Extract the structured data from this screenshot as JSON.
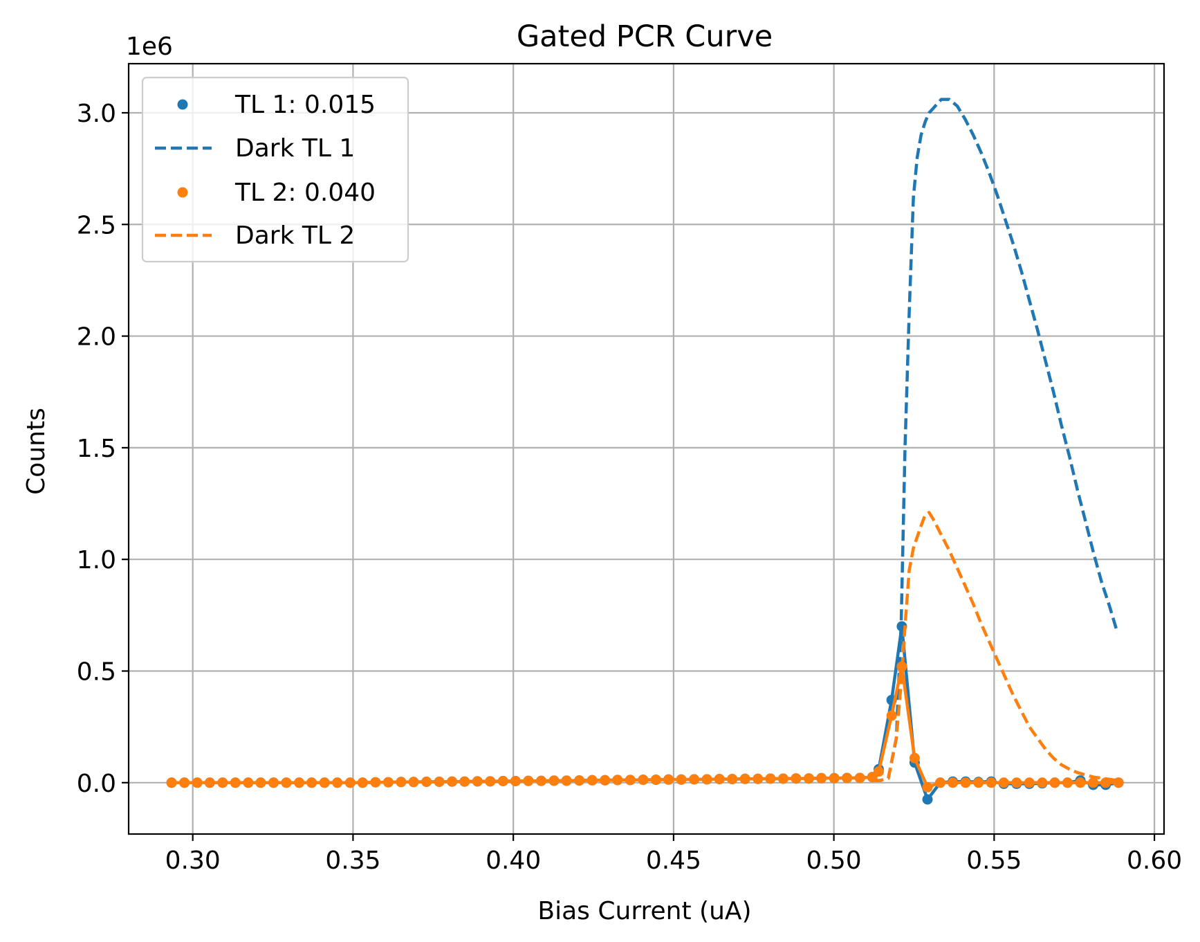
{
  "chart_data": {
    "type": "line",
    "title": "Gated PCR Curve",
    "xlabel": "Bias Current (uA)",
    "ylabel": "Counts",
    "y_offset_label": "1e6",
    "y_multiplier": 1000000,
    "xlim": [
      0.28,
      0.603
    ],
    "ylim": [
      -0.23,
      3.22
    ],
    "grid": true,
    "legend_position": "top-left",
    "x_ticks": [
      0.3,
      0.35,
      0.4,
      0.45,
      0.5,
      0.55,
      0.6
    ],
    "x_tick_labels": [
      "0.30",
      "0.35",
      "0.40",
      "0.45",
      "0.50",
      "0.55",
      "0.60"
    ],
    "y_ticks": [
      0.0,
      0.5,
      1.0,
      1.5,
      2.0,
      2.5,
      3.0
    ],
    "y_tick_labels": [
      "0.0",
      "0.5",
      "1.0",
      "1.5",
      "2.0",
      "2.5",
      "3.0"
    ],
    "colors": {
      "tl1": "#1f77b4",
      "tl2": "#ff7f0e"
    },
    "series": [
      {
        "name": "TL 1: 0.015",
        "style": "points-with-line",
        "color": "#1f77b4",
        "x": [
          0.2934,
          0.2974,
          0.3014,
          0.3053,
          0.3093,
          0.3133,
          0.3173,
          0.3212,
          0.3252,
          0.3292,
          0.3332,
          0.3371,
          0.3411,
          0.3451,
          0.3491,
          0.353,
          0.357,
          0.361,
          0.365,
          0.3689,
          0.3729,
          0.3769,
          0.3809,
          0.3848,
          0.3888,
          0.3928,
          0.3968,
          0.4007,
          0.4047,
          0.4087,
          0.4127,
          0.4166,
          0.4206,
          0.4246,
          0.4286,
          0.4325,
          0.4365,
          0.4405,
          0.4445,
          0.4484,
          0.4524,
          0.4564,
          0.4604,
          0.4643,
          0.4683,
          0.4723,
          0.4763,
          0.4802,
          0.4842,
          0.4882,
          0.4922,
          0.4961,
          0.5001,
          0.5041,
          0.5081,
          0.512,
          0.514,
          0.518,
          0.5212,
          0.5252,
          0.5292,
          0.5332,
          0.5371,
          0.5411,
          0.5451,
          0.5491,
          0.553,
          0.557,
          0.561,
          0.565,
          0.5689,
          0.5729,
          0.5769,
          0.5809,
          0.5848,
          0.5888
        ],
        "y": [
          0,
          0,
          0,
          0,
          0,
          0,
          0,
          0,
          0,
          0,
          0,
          0,
          0,
          0,
          0,
          0,
          0.002,
          0.002,
          0.003,
          0.003,
          0.004,
          0.004,
          0.005,
          0.005,
          0.006,
          0.006,
          0.007,
          0.007,
          0.008,
          0.008,
          0.009,
          0.009,
          0.01,
          0.011,
          0.011,
          0.012,
          0.012,
          0.013,
          0.013,
          0.014,
          0.014,
          0.015,
          0.015,
          0.016,
          0.016,
          0.017,
          0.017,
          0.018,
          0.018,
          0.019,
          0.019,
          0.02,
          0.02,
          0.021,
          0.021,
          0.025,
          0.06,
          0.37,
          0.7,
          0.09,
          -0.075,
          0.0,
          0.005,
          0.005,
          0.003,
          0.005,
          -0.005,
          -0.005,
          -0.005,
          -0.003,
          0.0,
          0.0,
          0.01,
          -0.01,
          -0.01,
          0.0
        ]
      },
      {
        "name": "Dark TL 1",
        "style": "dashed",
        "color": "#1f77b4",
        "x": [
          0.512,
          0.5145,
          0.517,
          0.5195,
          0.521,
          0.5222,
          0.5235,
          0.5248,
          0.526,
          0.5272,
          0.5285,
          0.5297,
          0.531,
          0.5335,
          0.536,
          0.5385,
          0.541,
          0.5435,
          0.546,
          0.5485,
          0.551,
          0.5535,
          0.556,
          0.5585,
          0.561,
          0.5635,
          0.566,
          0.5685,
          0.571,
          0.5735,
          0.576,
          0.5785,
          0.581,
          0.5835,
          0.586,
          0.5885
        ],
        "y": [
          0.01,
          0.01,
          0.02,
          0.2,
          0.72,
          1.5,
          2.1,
          2.62,
          2.8,
          2.9,
          2.96,
          3.0,
          3.02,
          3.06,
          3.06,
          3.03,
          2.97,
          2.9,
          2.82,
          2.73,
          2.63,
          2.52,
          2.41,
          2.29,
          2.16,
          2.03,
          1.89,
          1.75,
          1.6,
          1.46,
          1.31,
          1.17,
          1.03,
          0.9,
          0.79,
          0.67
        ]
      },
      {
        "name": "TL 2: 0.040",
        "style": "points-with-line",
        "color": "#ff7f0e",
        "x": [
          0.2934,
          0.2974,
          0.3014,
          0.3053,
          0.3093,
          0.3133,
          0.3173,
          0.3212,
          0.3252,
          0.3292,
          0.3332,
          0.3371,
          0.3411,
          0.3451,
          0.3491,
          0.353,
          0.357,
          0.361,
          0.365,
          0.3689,
          0.3729,
          0.3769,
          0.3809,
          0.3848,
          0.3888,
          0.3928,
          0.3968,
          0.4007,
          0.4047,
          0.4087,
          0.4127,
          0.4166,
          0.4206,
          0.4246,
          0.4286,
          0.4325,
          0.4365,
          0.4405,
          0.4445,
          0.4484,
          0.4524,
          0.4564,
          0.4604,
          0.4643,
          0.4683,
          0.4723,
          0.4763,
          0.4802,
          0.4842,
          0.4882,
          0.4922,
          0.4961,
          0.5001,
          0.5041,
          0.5081,
          0.512,
          0.514,
          0.518,
          0.5212,
          0.5252,
          0.5292,
          0.5332,
          0.5371,
          0.5411,
          0.5451,
          0.5491,
          0.553,
          0.557,
          0.561,
          0.565,
          0.5689,
          0.5729,
          0.5769,
          0.5809,
          0.5848,
          0.5888
        ],
        "y": [
          0,
          0,
          0,
          0,
          0,
          0,
          0,
          0,
          0,
          0,
          0,
          0,
          0,
          0,
          0,
          0,
          0.002,
          0.002,
          0.003,
          0.003,
          0.004,
          0.004,
          0.005,
          0.005,
          0.006,
          0.006,
          0.007,
          0.007,
          0.008,
          0.008,
          0.009,
          0.009,
          0.01,
          0.011,
          0.011,
          0.012,
          0.012,
          0.013,
          0.013,
          0.014,
          0.014,
          0.015,
          0.015,
          0.016,
          0.016,
          0.017,
          0.017,
          0.018,
          0.018,
          0.019,
          0.019,
          0.02,
          0.02,
          0.021,
          0.021,
          0.025,
          0.05,
          0.3,
          0.52,
          0.11,
          -0.02,
          0.0,
          0.0,
          0.0,
          0.0,
          0.0,
          0.0,
          0.0,
          0.0,
          0.0,
          0.0,
          0.0,
          0.0,
          0.0,
          0.0,
          0.0
        ]
      },
      {
        "name": "Dark TL 2",
        "style": "dashed",
        "color": "#ff7f0e",
        "x": [
          0.512,
          0.5145,
          0.517,
          0.5195,
          0.521,
          0.5222,
          0.5235,
          0.5248,
          0.526,
          0.5272,
          0.5285,
          0.5297,
          0.531,
          0.5335,
          0.536,
          0.5385,
          0.541,
          0.5435,
          0.546,
          0.5485,
          0.551,
          0.5535,
          0.556,
          0.5585,
          0.561,
          0.5635,
          0.566,
          0.5685,
          0.571,
          0.5735,
          0.576,
          0.5785,
          0.581,
          0.5835,
          0.586,
          0.5885
        ],
        "y": [
          0.01,
          0.01,
          0.02,
          0.2,
          0.45,
          0.7,
          0.95,
          1.05,
          1.1,
          1.15,
          1.2,
          1.21,
          1.18,
          1.11,
          1.04,
          0.96,
          0.88,
          0.8,
          0.71,
          0.63,
          0.55,
          0.47,
          0.39,
          0.32,
          0.25,
          0.2,
          0.15,
          0.11,
          0.08,
          0.06,
          0.045,
          0.035,
          0.025,
          0.02,
          0.015,
          0.01
        ]
      }
    ]
  }
}
